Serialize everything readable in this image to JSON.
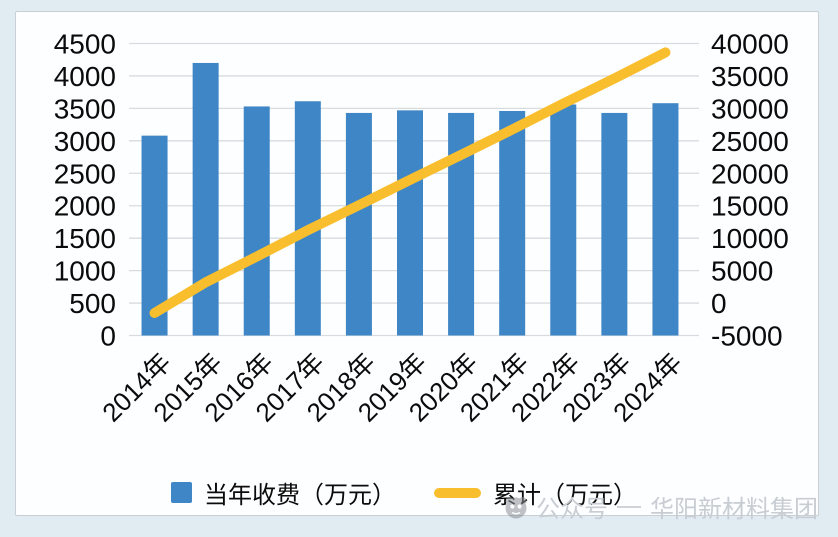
{
  "colors": {
    "page_background": "#E1EBF2",
    "card_background": "#FDFEFF",
    "card_border": "#C9CFD4",
    "grid": "#D8DCDE",
    "bar_blue": "#3E86C6",
    "line_yellow": "#F9BE2D",
    "axis_text": "#0B0B0B",
    "watermark_gray": "#C7CDD2"
  },
  "chart_data": {
    "type": "combo",
    "title": "",
    "categories": [
      "2014年",
      "2015年",
      "2016年",
      "2017年",
      "2018年",
      "2019年",
      "2020年",
      "2021年",
      "2022年",
      "2023年",
      "2024年"
    ],
    "series": [
      {
        "name": "当年收费（万元）",
        "type": "bar",
        "axis": "left",
        "color": "#3E86C6",
        "values": [
          3080,
          4200,
          3530,
          3610,
          3430,
          3470,
          3430,
          3460,
          3560,
          3430,
          3580
        ]
      },
      {
        "name": "累计（万元）",
        "type": "line",
        "axis": "right",
        "color": "#F9BE2D",
        "values": [
          3080,
          7280,
          10810,
          14420,
          17850,
          21320,
          24750,
          28210,
          31770,
          35200,
          38780
        ]
      }
    ],
    "left_axis": {
      "min": 0,
      "max": 4500,
      "step": 500,
      "ticks": [
        0,
        500,
        1000,
        1500,
        2000,
        2500,
        3000,
        3500,
        4000,
        4500
      ]
    },
    "right_axis": {
      "min": 0,
      "max": 40000,
      "step": 5000,
      "ticks": [
        0,
        5000,
        10000,
        15000,
        20000,
        25000,
        30000,
        35000,
        40000
      ]
    },
    "grid": true,
    "legend_position": "bottom"
  },
  "legend": {
    "items": [
      {
        "label": "当年收费（万元）",
        "swatch": "square",
        "color": "#3E86C6"
      },
      {
        "label": "累计（万元）",
        "swatch": "line",
        "color": "#F9BE2D"
      }
    ]
  },
  "watermark": {
    "source": "公众号",
    "name": "华阳新材料集团"
  }
}
